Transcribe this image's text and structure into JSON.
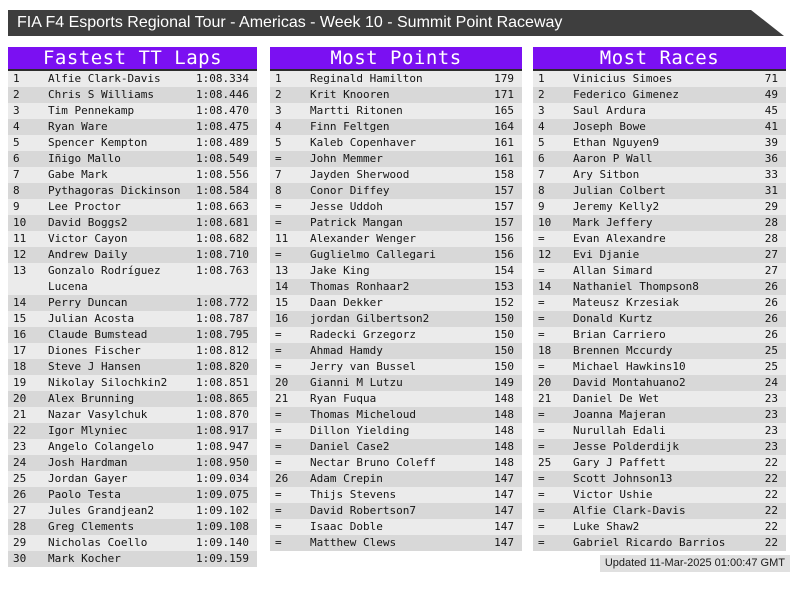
{
  "title_bar": {
    "text": "FIA F4 Esports Regional Tour - Americas - Week 10 - Summit Point Raceway"
  },
  "footer": {
    "updated": "Updated 11-Mar-2025 01:00:47 GMT"
  },
  "colors": {
    "accent_purple": "#7b10f2",
    "titlebar_bg": "#3e3e3e",
    "header_underline": "#2d2d2d",
    "row_light": "#ebebeb",
    "row_dark": "#d8d8d8",
    "footer_bg": "#e0e0e0"
  },
  "boards": [
    {
      "title": "Fastest TT Laps",
      "rows": [
        {
          "rank": "1",
          "name": "Alfie Clark-Davis",
          "value": "1:08.334"
        },
        {
          "rank": "2",
          "name": "Chris S Williams",
          "value": "1:08.446"
        },
        {
          "rank": "3",
          "name": "Tim Pennekamp",
          "value": "1:08.470"
        },
        {
          "rank": "4",
          "name": "Ryan Ware",
          "value": "1:08.475"
        },
        {
          "rank": "5",
          "name": "Spencer Kempton",
          "value": "1:08.489"
        },
        {
          "rank": "6",
          "name": "Iñigo Mallo",
          "value": "1:08.549"
        },
        {
          "rank": "7",
          "name": "Gabe Mark",
          "value": "1:08.556"
        },
        {
          "rank": "8",
          "name": "Pythagoras Dickinson",
          "value": "1:08.584"
        },
        {
          "rank": "9",
          "name": "Lee Proctor",
          "value": "1:08.663"
        },
        {
          "rank": "10",
          "name": "David Boggs2",
          "value": "1:08.681"
        },
        {
          "rank": "11",
          "name": "Victor Cayon",
          "value": "1:08.682"
        },
        {
          "rank": "12",
          "name": "Andrew Daily",
          "value": "1:08.710"
        },
        {
          "rank": "13",
          "name": "Gonzalo Rodríguez Lucena",
          "value": "1:08.763"
        },
        {
          "rank": "14",
          "name": "Perry Duncan",
          "value": "1:08.772"
        },
        {
          "rank": "15",
          "name": "Julian Acosta",
          "value": "1:08.787"
        },
        {
          "rank": "16",
          "name": "Claude Bumstead",
          "value": "1:08.795"
        },
        {
          "rank": "17",
          "name": "Diones Fischer",
          "value": "1:08.812"
        },
        {
          "rank": "18",
          "name": "Steve J Hansen",
          "value": "1:08.820"
        },
        {
          "rank": "19",
          "name": "Nikolay Silochkin2",
          "value": "1:08.851"
        },
        {
          "rank": "20",
          "name": "Alex Brunning",
          "value": "1:08.865"
        },
        {
          "rank": "21",
          "name": "Nazar Vasylchuk",
          "value": "1:08.870"
        },
        {
          "rank": "22",
          "name": "Igor Mlyniec",
          "value": "1:08.917"
        },
        {
          "rank": "23",
          "name": "Angelo Colangelo",
          "value": "1:08.947"
        },
        {
          "rank": "24",
          "name": "Josh Hardman",
          "value": "1:08.950"
        },
        {
          "rank": "25",
          "name": "Jordan Gayer",
          "value": "1:09.034"
        },
        {
          "rank": "26",
          "name": "Paolo Testa",
          "value": "1:09.075"
        },
        {
          "rank": "27",
          "name": "Jules Grandjean2",
          "value": "1:09.102"
        },
        {
          "rank": "28",
          "name": "Greg Clements",
          "value": "1:09.108"
        },
        {
          "rank": "29",
          "name": "Nicholas Coello",
          "value": "1:09.140"
        },
        {
          "rank": "30",
          "name": "Mark Kocher",
          "value": "1:09.159"
        }
      ]
    },
    {
      "title": "Most Points",
      "rows": [
        {
          "rank": "1",
          "name": "Reginald Hamilton",
          "value": "179"
        },
        {
          "rank": "2",
          "name": "Krit Knooren",
          "value": "171"
        },
        {
          "rank": "3",
          "name": "Martti Ritonen",
          "value": "165"
        },
        {
          "rank": "4",
          "name": "Finn Feltgen",
          "value": "164"
        },
        {
          "rank": "5",
          "name": "Kaleb Copenhaver",
          "value": "161"
        },
        {
          "rank": "=",
          "name": "John Memmer",
          "value": "161"
        },
        {
          "rank": "7",
          "name": "Jayden Sherwood",
          "value": "158"
        },
        {
          "rank": "8",
          "name": "Conor Diffey",
          "value": "157"
        },
        {
          "rank": "=",
          "name": "Jesse Uddoh",
          "value": "157"
        },
        {
          "rank": "=",
          "name": "Patrick Mangan",
          "value": "157"
        },
        {
          "rank": "11",
          "name": "Alexander Wenger",
          "value": "156"
        },
        {
          "rank": "=",
          "name": "Guglielmo Callegari",
          "value": "156"
        },
        {
          "rank": "13",
          "name": "Jake King",
          "value": "154"
        },
        {
          "rank": "14",
          "name": "Thomas Ronhaar2",
          "value": "153"
        },
        {
          "rank": "15",
          "name": "Daan Dekker",
          "value": "152"
        },
        {
          "rank": "16",
          "name": "jordan Gilbertson2",
          "value": "150"
        },
        {
          "rank": "=",
          "name": "Radecki Grzegorz",
          "value": "150"
        },
        {
          "rank": "=",
          "name": "Ahmad Hamdy",
          "value": "150"
        },
        {
          "rank": "=",
          "name": "Jerry van Bussel",
          "value": "150"
        },
        {
          "rank": "20",
          "name": "Gianni M Lutzu",
          "value": "149"
        },
        {
          "rank": "21",
          "name": "Ryan Fuqua",
          "value": "148"
        },
        {
          "rank": "=",
          "name": "Thomas Micheloud",
          "value": "148"
        },
        {
          "rank": "=",
          "name": "Dillon Yielding",
          "value": "148"
        },
        {
          "rank": "=",
          "name": "Daniel Case2",
          "value": "148"
        },
        {
          "rank": "=",
          "name": "Nectar Bruno Coleff",
          "value": "148"
        },
        {
          "rank": "26",
          "name": "Adam Crepin",
          "value": "147"
        },
        {
          "rank": "=",
          "name": "Thijs Stevens",
          "value": "147"
        },
        {
          "rank": "=",
          "name": "David Robertson7",
          "value": "147"
        },
        {
          "rank": "=",
          "name": "Isaac Doble",
          "value": "147"
        },
        {
          "rank": "=",
          "name": "Matthew Clews",
          "value": "147"
        }
      ]
    },
    {
      "title": "Most Races",
      "rows": [
        {
          "rank": "1",
          "name": "Vinicius Simoes",
          "value": "71"
        },
        {
          "rank": "2",
          "name": "Federico Gimenez",
          "value": "49"
        },
        {
          "rank": "3",
          "name": "Saul Ardura",
          "value": "45"
        },
        {
          "rank": "4",
          "name": "Joseph Bowe",
          "value": "41"
        },
        {
          "rank": "5",
          "name": "Ethan Nguyen9",
          "value": "39"
        },
        {
          "rank": "6",
          "name": "Aaron P Wall",
          "value": "36"
        },
        {
          "rank": "7",
          "name": "Ary Sitbon",
          "value": "33"
        },
        {
          "rank": "8",
          "name": "Julian Colbert",
          "value": "31"
        },
        {
          "rank": "9",
          "name": "Jeremy Kelly2",
          "value": "29"
        },
        {
          "rank": "10",
          "name": "Mark Jeffery",
          "value": "28"
        },
        {
          "rank": "=",
          "name": "Evan Alexandre",
          "value": "28"
        },
        {
          "rank": "12",
          "name": "Evi Djanie",
          "value": "27"
        },
        {
          "rank": "=",
          "name": "Allan Simard",
          "value": "27"
        },
        {
          "rank": "14",
          "name": "Nathaniel Thompson8",
          "value": "26"
        },
        {
          "rank": "=",
          "name": "Mateusz Krzesiak",
          "value": "26"
        },
        {
          "rank": "=",
          "name": "Donald Kurtz",
          "value": "26"
        },
        {
          "rank": "=",
          "name": "Brian Carriero",
          "value": "26"
        },
        {
          "rank": "18",
          "name": "Brennen Mccurdy",
          "value": "25"
        },
        {
          "rank": "=",
          "name": "Michael Hawkins10",
          "value": "25"
        },
        {
          "rank": "20",
          "name": "David Montahuano2",
          "value": "24"
        },
        {
          "rank": "21",
          "name": "Daniel De Wet",
          "value": "23"
        },
        {
          "rank": "=",
          "name": "Joanna Majeran",
          "value": "23"
        },
        {
          "rank": "=",
          "name": "Nurullah Edali",
          "value": "23"
        },
        {
          "rank": "=",
          "name": "Jesse Polderdijk",
          "value": "23"
        },
        {
          "rank": "25",
          "name": "Gary J Paffett",
          "value": "22"
        },
        {
          "rank": "=",
          "name": "Scott Johnson13",
          "value": "22"
        },
        {
          "rank": "=",
          "name": "Victor Ushie",
          "value": "22"
        },
        {
          "rank": "=",
          "name": "Alfie Clark-Davis",
          "value": "22"
        },
        {
          "rank": "=",
          "name": "Luke Shaw2",
          "value": "22"
        },
        {
          "rank": "=",
          "name": "Gabriel Ricardo Barrios",
          "value": "22"
        }
      ]
    }
  ]
}
